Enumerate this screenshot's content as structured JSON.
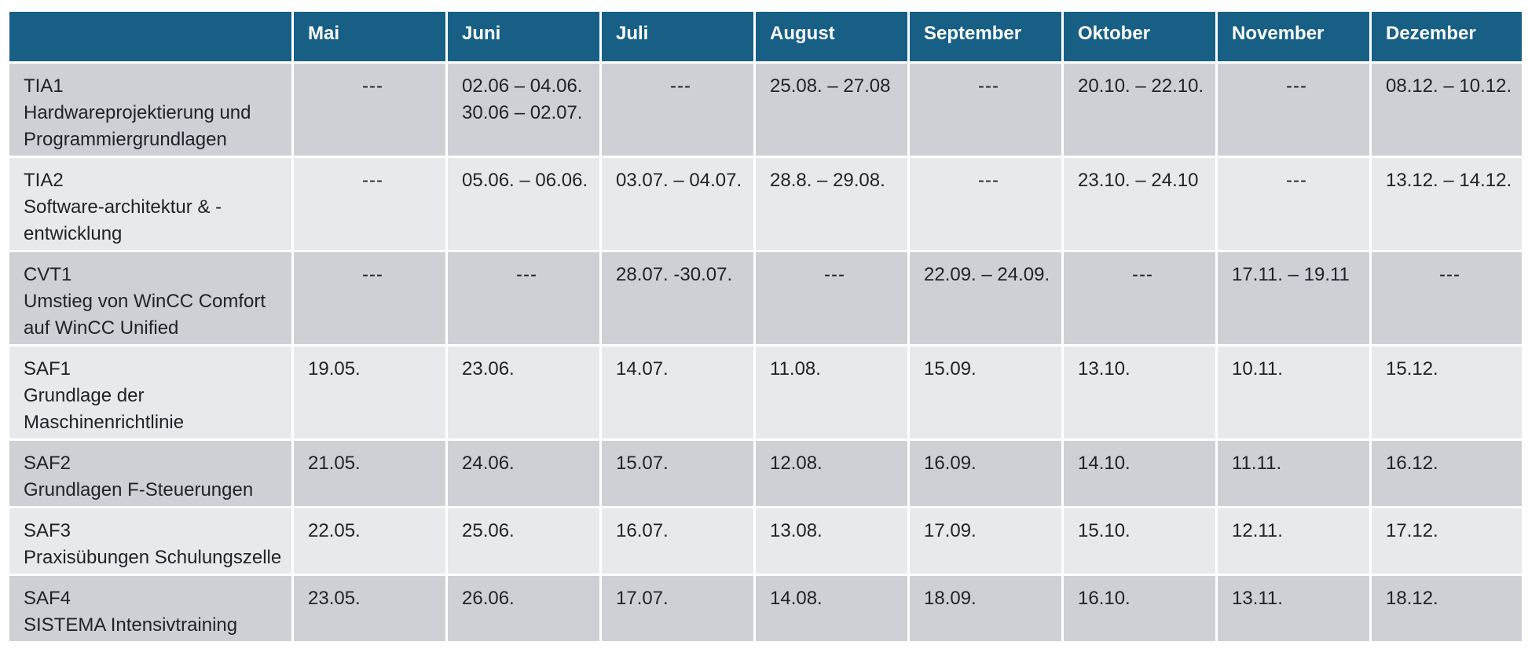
{
  "header": {
    "corner": "",
    "months": [
      "Mai",
      "Juni",
      "Juli",
      "August",
      "September",
      "Oktober",
      "November",
      "Dezember"
    ]
  },
  "rows": [
    {
      "code": "TIA1",
      "title": [
        "Hardwareprojektierung und",
        "Programmiergrundlagen"
      ],
      "dates": [
        [
          "---"
        ],
        [
          "02.06 – 04.06.",
          "30.06 – 02.07."
        ],
        [
          "---"
        ],
        [
          "25.08. – 27.08"
        ],
        [
          "---"
        ],
        [
          "20.10. – 22.10."
        ],
        [
          "---"
        ],
        [
          "08.12. – 10.12."
        ]
      ]
    },
    {
      "code": "TIA2",
      "title": [
        "Software-architektur & -",
        "entwicklung"
      ],
      "dates": [
        [
          "---"
        ],
        [
          "05.06. – 06.06."
        ],
        [
          "03.07. – 04.07."
        ],
        [
          "28.8. – 29.08."
        ],
        [
          "---"
        ],
        [
          "23.10. – 24.10"
        ],
        [
          "---"
        ],
        [
          "13.12. – 14.12."
        ]
      ]
    },
    {
      "code": "CVT1",
      "title": [
        "Umstieg von WinCC Comfort",
        "auf WinCC Unified"
      ],
      "dates": [
        [
          "---"
        ],
        [
          "---"
        ],
        [
          "28.07. -30.07."
        ],
        [
          "---"
        ],
        [
          "22.09. – 24.09."
        ],
        [
          "---"
        ],
        [
          "17.11. – 19.11"
        ],
        [
          "---"
        ]
      ]
    },
    {
      "code": "SAF1",
      "title": [
        "Grundlage der",
        "Maschinenrichtlinie"
      ],
      "dates": [
        [
          "19.05."
        ],
        [
          "23.06."
        ],
        [
          "14.07."
        ],
        [
          "11.08."
        ],
        [
          "15.09."
        ],
        [
          "13.10."
        ],
        [
          "10.11."
        ],
        [
          "15.12."
        ]
      ]
    },
    {
      "code": "SAF2",
      "title": [
        "Grundlagen F-Steuerungen"
      ],
      "dates": [
        [
          "21.05."
        ],
        [
          "24.06."
        ],
        [
          "15.07."
        ],
        [
          "12.08."
        ],
        [
          "16.09."
        ],
        [
          "14.10."
        ],
        [
          "11.11."
        ],
        [
          "16.12."
        ]
      ]
    },
    {
      "code": "SAF3",
      "title": [
        "Praxisübungen Schulungszelle"
      ],
      "dates": [
        [
          "22.05."
        ],
        [
          "25.06."
        ],
        [
          "16.07."
        ],
        [
          "13.08."
        ],
        [
          "17.09."
        ],
        [
          "15.10."
        ],
        [
          "12.11."
        ],
        [
          "17.12."
        ]
      ]
    },
    {
      "code": "SAF4",
      "title": [
        "SISTEMA Intensivtraining"
      ],
      "dates": [
        [
          "23.05."
        ],
        [
          "26.06."
        ],
        [
          "17.07."
        ],
        [
          "14.08."
        ],
        [
          "18.09."
        ],
        [
          "16.10."
        ],
        [
          "13.11."
        ],
        [
          "18.12."
        ]
      ]
    }
  ]
}
